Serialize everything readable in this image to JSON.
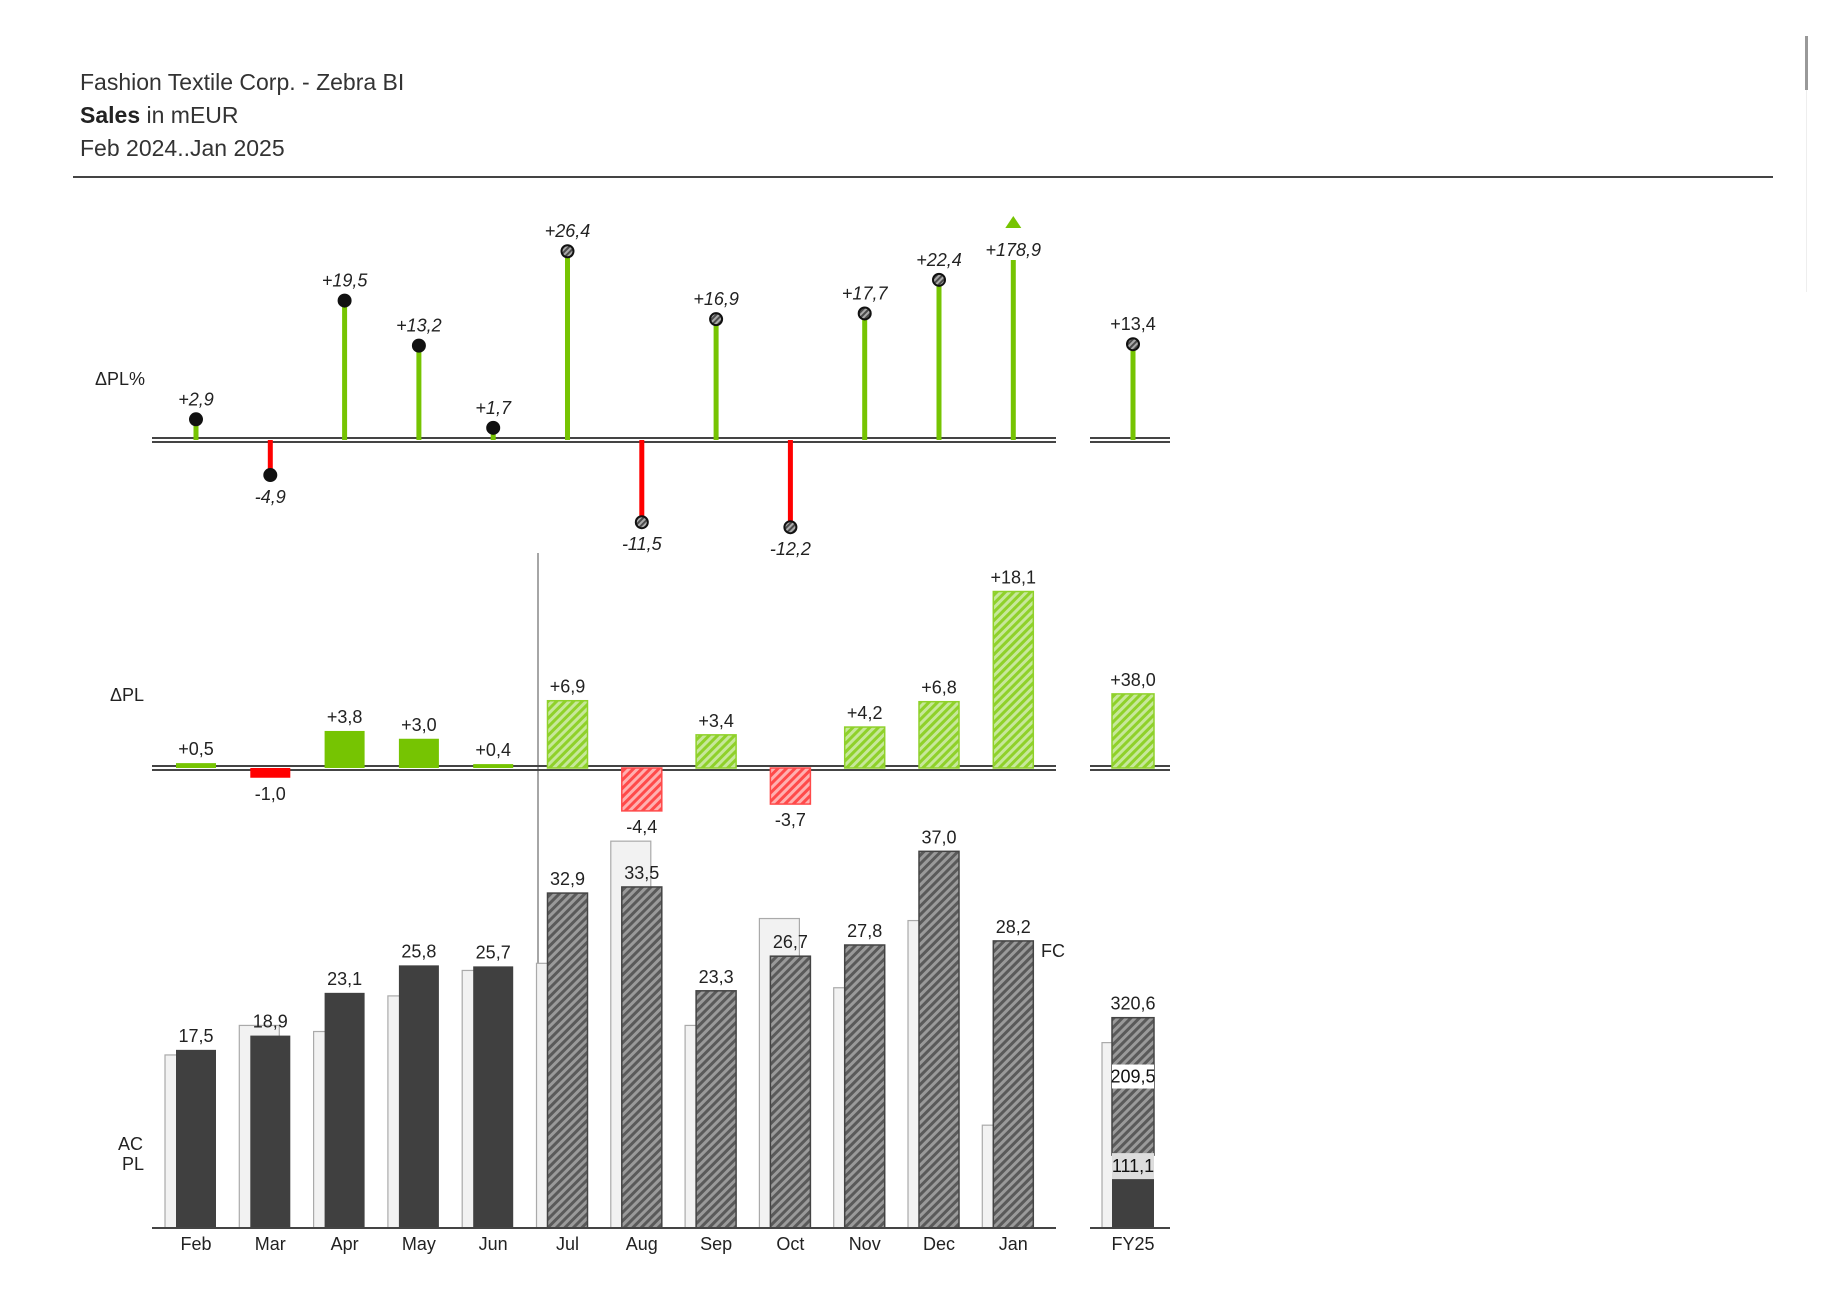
{
  "header": {
    "company": "Fashion Textile Corp. - Zebra BI",
    "measure": "Sales",
    "unit": "in mEUR",
    "period": "Feb 2024..Jan 2025"
  },
  "colors": {
    "actual": "#404040",
    "plan": "#f2f2f2",
    "forecast_hatch": "#7f7f7f",
    "positive": "#76c402",
    "negative": "#ff0000",
    "axis": "#444444"
  },
  "chart_data": [
    {
      "type": "lollipop",
      "row_label": "ΔPL%",
      "categories": [
        "Feb",
        "Mar",
        "Apr",
        "May",
        "Jun",
        "Jul",
        "Aug",
        "Sep",
        "Oct",
        "Nov",
        "Dec",
        "Jan"
      ],
      "values": [
        2.9,
        -4.9,
        19.5,
        13.2,
        1.7,
        26.4,
        -11.5,
        16.9,
        -12.2,
        17.7,
        22.4,
        178.9
      ],
      "labels": [
        "+2,9",
        "-4,9",
        "+19,5",
        "+13,2",
        "+1,7",
        "+26,4",
        "-11,5",
        "+16,9",
        "-12,2",
        "+17,7",
        "+22,4",
        "+178,9"
      ],
      "forecast_from_index": 5,
      "outlier_index": 11,
      "total": {
        "category": "FY25",
        "value": 13.4,
        "label": "+13,4"
      }
    },
    {
      "type": "bar",
      "row_label": "ΔPL",
      "categories": [
        "Feb",
        "Mar",
        "Apr",
        "May",
        "Jun",
        "Jul",
        "Aug",
        "Sep",
        "Oct",
        "Nov",
        "Dec",
        "Jan"
      ],
      "values": [
        0.5,
        -1.0,
        3.8,
        3.0,
        0.4,
        6.9,
        -4.4,
        3.4,
        -3.7,
        4.2,
        6.8,
        18.1
      ],
      "labels": [
        "+0,5",
        "-1,0",
        "+3,8",
        "+3,0",
        "+0,4",
        "+6,9",
        "-4,4",
        "+3,4",
        "-3,7",
        "+4,2",
        "+6,8",
        "+18,1"
      ],
      "forecast_from_index": 5,
      "total": {
        "category": "FY25",
        "value": 38.0,
        "label": "+38,0"
      }
    },
    {
      "type": "bar",
      "row_label_top": "AC",
      "row_label_bottom": "PL",
      "forecast_label": "FC",
      "categories": [
        "Feb",
        "Mar",
        "Apr",
        "May",
        "Jun",
        "Jul",
        "Aug",
        "Sep",
        "Oct",
        "Nov",
        "Dec",
        "Jan"
      ],
      "series": [
        {
          "name": "AC",
          "values": [
            17.5,
            18.9,
            23.1,
            25.8,
            25.7,
            32.9,
            33.5,
            23.3,
            26.7,
            27.8,
            37.0,
            28.2
          ],
          "labels": [
            "17,5",
            "18,9",
            "23,1",
            "25,8",
            "25,7",
            "32,9",
            "33,5",
            "23,3",
            "26,7",
            "27,8",
            "37,0",
            "28,2"
          ]
        },
        {
          "name": "PL",
          "values": [
            17.0,
            19.9,
            19.3,
            22.8,
            25.3,
            26.0,
            38.0,
            19.9,
            30.4,
            23.6,
            30.2,
            10.1
          ]
        }
      ],
      "forecast_from_index": 5,
      "total": {
        "category": "FY25",
        "ac": 111.1,
        "ac_label": "111,1",
        "fc": 209.5,
        "fc_label": "209,5",
        "value": 320.6,
        "label": "320,6",
        "pl": 282.6
      }
    }
  ]
}
